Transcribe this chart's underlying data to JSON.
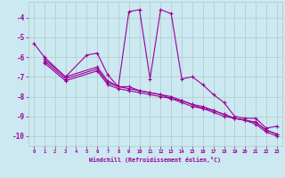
{
  "xlabel": "Windchill (Refroidissement éolien,°C)",
  "background_color": "#cce8f0",
  "line_color": "#990099",
  "grid_color": "#aacccc",
  "x_values": [
    0,
    1,
    2,
    3,
    4,
    5,
    6,
    7,
    8,
    9,
    10,
    11,
    12,
    13,
    14,
    15,
    16,
    17,
    18,
    19,
    20,
    21,
    22,
    23
  ],
  "series_top": [
    -5.3,
    -6.0,
    null,
    -7.0,
    null,
    -5.9,
    -5.8,
    -6.9,
    -7.5,
    -3.7,
    -3.6,
    -7.1,
    -3.6,
    -3.8,
    -7.1,
    -7.0,
    -7.4,
    -7.9,
    -8.3,
    -9.0,
    -9.1,
    -9.1,
    -9.6,
    -9.5
  ],
  "series_a": [
    null,
    -6.1,
    null,
    -7.0,
    null,
    null,
    -6.5,
    -7.2,
    -7.5,
    -7.5,
    -7.7,
    -7.8,
    -7.9,
    -8.0,
    -8.2,
    -8.4,
    -8.5,
    -8.7,
    -8.9,
    -9.1,
    -9.2,
    -9.3,
    -9.7,
    -9.9
  ],
  "series_b": [
    null,
    -6.2,
    null,
    -7.1,
    null,
    null,
    -6.6,
    -7.3,
    -7.5,
    -7.6,
    -7.7,
    -7.8,
    -7.9,
    -8.1,
    -8.2,
    -8.4,
    -8.6,
    -8.7,
    -8.9,
    -9.1,
    -9.2,
    -9.3,
    -9.7,
    -9.9
  ],
  "series_c": [
    null,
    -6.3,
    null,
    -7.2,
    null,
    null,
    -6.7,
    -7.4,
    -7.6,
    -7.7,
    -7.8,
    -7.9,
    -8.0,
    -8.1,
    -8.3,
    -8.5,
    -8.6,
    -8.8,
    -9.0,
    -9.1,
    -9.2,
    -9.4,
    -9.8,
    -10.0
  ],
  "ylim": [
    -10.5,
    -3.2
  ],
  "xlim": [
    -0.5,
    23.5
  ],
  "yticks": [
    -10,
    -9,
    -8,
    -7,
    -6,
    -5,
    -4
  ],
  "xticks": [
    0,
    1,
    2,
    3,
    4,
    5,
    6,
    7,
    8,
    9,
    10,
    11,
    12,
    13,
    14,
    15,
    16,
    17,
    18,
    19,
    20,
    21,
    22,
    23
  ]
}
